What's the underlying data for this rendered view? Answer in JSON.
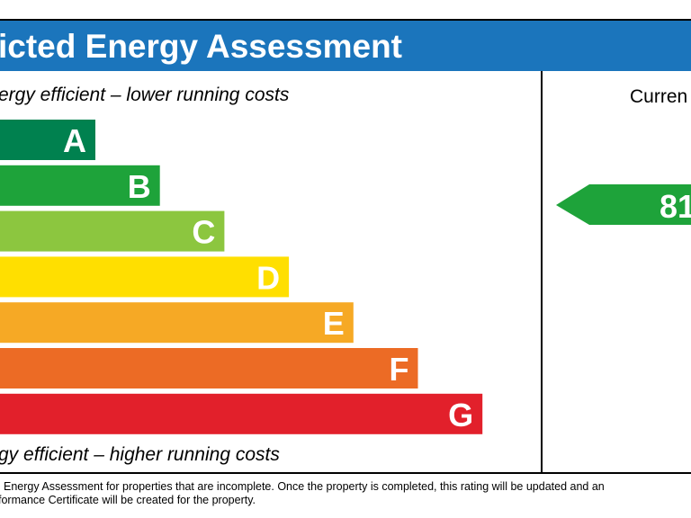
{
  "header": {
    "title": "icted Energy Assessment"
  },
  "top_note": "ergy efficient – lower running costs",
  "bottom_note": "gy efficient – higher running costs",
  "bands": [
    {
      "label": "A",
      "color": "#00814f"
    },
    {
      "label": "B",
      "color": "#1ea33a"
    },
    {
      "label": "C",
      "color": "#8cc63f"
    },
    {
      "label": "D",
      "color": "#ffdf00"
    },
    {
      "label": "E",
      "color": "#f6a925"
    },
    {
      "label": "F",
      "color": "#ec6b25"
    },
    {
      "label": "G",
      "color": "#e2202b"
    }
  ],
  "current": {
    "heading": "Curren",
    "rating": "81",
    "color": "#1ea33a"
  },
  "footnote": [
    "Energy Assessment for properties that are incomplete. Once the property is completed, this rating will be updated and an",
    "formance Certificate will be created for the property."
  ]
}
